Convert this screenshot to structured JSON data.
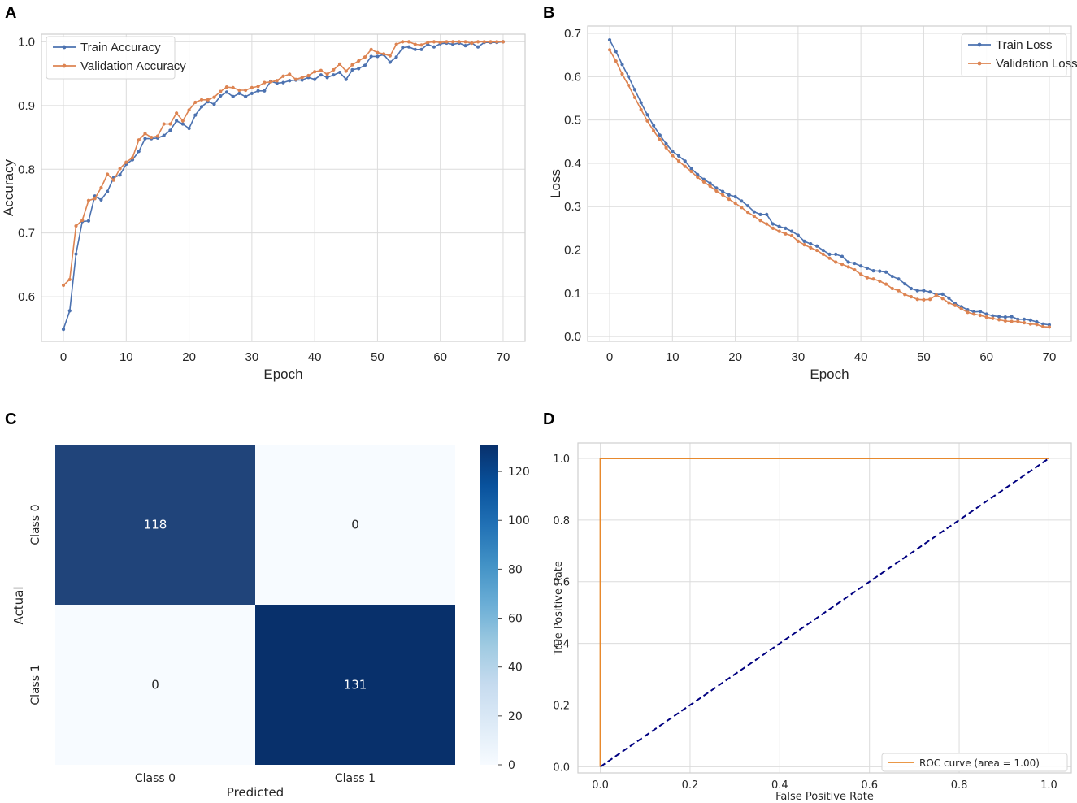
{
  "chart_data": [
    {
      "panel": "A",
      "type": "line",
      "xlabel": "Epoch",
      "ylabel": "Accuracy",
      "xlim": [
        -3.5,
        73.5
      ],
      "ylim": [
        0.53,
        1.012
      ],
      "xticks": [
        0,
        10,
        20,
        30,
        40,
        50,
        60,
        70
      ],
      "xtick_labels": [
        "0",
        "10",
        "20",
        "30",
        "40",
        "50",
        "60",
        "70"
      ],
      "yticks": [
        0.6,
        0.7,
        0.8,
        0.9,
        1.0
      ],
      "ytick_labels": [
        "0.6",
        "0.7",
        "0.8",
        "0.9",
        "1.0"
      ],
      "grid": true,
      "legend_position": "top-left",
      "series": [
        {
          "name": "Train Accuracy",
          "color": "#4c72b0",
          "values": [
            0.549,
            0.578,
            0.667,
            0.718,
            0.719,
            0.758,
            0.752,
            0.765,
            0.787,
            0.791,
            0.808,
            0.815,
            0.828,
            0.848,
            0.848,
            0.849,
            0.853,
            0.861,
            0.876,
            0.871,
            0.864,
            0.885,
            0.898,
            0.906,
            0.902,
            0.915,
            0.921,
            0.914,
            0.919,
            0.914,
            0.919,
            0.923,
            0.923,
            0.938,
            0.935,
            0.936,
            0.939,
            0.94,
            0.94,
            0.944,
            0.941,
            0.948,
            0.944,
            0.948,
            0.952,
            0.941,
            0.956,
            0.958,
            0.963,
            0.977,
            0.977,
            0.98,
            0.968,
            0.976,
            0.991,
            0.992,
            0.988,
            0.988,
            0.996,
            0.992,
            0.997,
            0.998,
            0.996,
            0.998,
            0.994,
            0.998,
            0.992,
            0.999,
            0.999,
            0.999,
            1.0
          ]
        },
        {
          "name": "Validation Accuracy",
          "color": "#dd8452",
          "values": [
            0.618,
            0.627,
            0.711,
            0.72,
            0.751,
            0.754,
            0.771,
            0.792,
            0.783,
            0.801,
            0.811,
            0.818,
            0.846,
            0.856,
            0.85,
            0.852,
            0.871,
            0.871,
            0.888,
            0.876,
            0.893,
            0.905,
            0.909,
            0.909,
            0.913,
            0.922,
            0.929,
            0.928,
            0.924,
            0.924,
            0.928,
            0.93,
            0.936,
            0.937,
            0.939,
            0.946,
            0.949,
            0.941,
            0.944,
            0.947,
            0.953,
            0.955,
            0.949,
            0.956,
            0.965,
            0.954,
            0.964,
            0.97,
            0.976,
            0.988,
            0.983,
            0.981,
            0.978,
            0.996,
            1.0,
            1.0,
            0.996,
            0.995,
            0.999,
            1.0,
            0.999,
            1.0,
            1.0,
            1.0,
            1.0,
            0.998,
            1.0,
            1.0,
            1.0,
            1.0,
            1.0
          ]
        }
      ]
    },
    {
      "panel": "B",
      "type": "line",
      "xlabel": "Epoch",
      "ylabel": "Loss",
      "xlim": [
        -3.5,
        73.5
      ],
      "ylim": [
        -0.011,
        0.717
      ],
      "xticks": [
        0,
        10,
        20,
        30,
        40,
        50,
        60,
        70
      ],
      "xtick_labels": [
        "0",
        "10",
        "20",
        "30",
        "40",
        "50",
        "60",
        "70"
      ],
      "yticks": [
        0.0,
        0.1,
        0.2,
        0.3,
        0.4,
        0.5,
        0.6,
        0.7
      ],
      "ytick_labels": [
        "0.0",
        "0.1",
        "0.2",
        "0.3",
        "0.4",
        "0.5",
        "0.6",
        "0.7"
      ],
      "grid": true,
      "legend_position": "top-right",
      "series": [
        {
          "name": "Train Loss",
          "color": "#4c72b0",
          "values": [
            0.685,
            0.658,
            0.628,
            0.6,
            0.57,
            0.54,
            0.512,
            0.487,
            0.465,
            0.445,
            0.428,
            0.417,
            0.405,
            0.388,
            0.374,
            0.363,
            0.354,
            0.343,
            0.335,
            0.327,
            0.323,
            0.313,
            0.302,
            0.288,
            0.282,
            0.282,
            0.26,
            0.254,
            0.25,
            0.243,
            0.234,
            0.22,
            0.214,
            0.209,
            0.199,
            0.19,
            0.19,
            0.185,
            0.172,
            0.169,
            0.163,
            0.158,
            0.152,
            0.151,
            0.149,
            0.139,
            0.133,
            0.122,
            0.111,
            0.106,
            0.106,
            0.103,
            0.097,
            0.098,
            0.089,
            0.076,
            0.069,
            0.062,
            0.057,
            0.058,
            0.052,
            0.048,
            0.046,
            0.045,
            0.046,
            0.04,
            0.04,
            0.038,
            0.034,
            0.029,
            0.027
          ]
        },
        {
          "name": "Validation Loss",
          "color": "#dd8452",
          "values": [
            0.662,
            0.636,
            0.606,
            0.58,
            0.552,
            0.524,
            0.498,
            0.475,
            0.455,
            0.436,
            0.418,
            0.405,
            0.393,
            0.381,
            0.368,
            0.357,
            0.347,
            0.336,
            0.327,
            0.317,
            0.308,
            0.298,
            0.287,
            0.278,
            0.268,
            0.26,
            0.25,
            0.243,
            0.237,
            0.233,
            0.22,
            0.212,
            0.205,
            0.199,
            0.19,
            0.181,
            0.172,
            0.167,
            0.161,
            0.154,
            0.144,
            0.136,
            0.133,
            0.128,
            0.121,
            0.111,
            0.106,
            0.097,
            0.092,
            0.086,
            0.085,
            0.086,
            0.096,
            0.088,
            0.078,
            0.072,
            0.064,
            0.056,
            0.052,
            0.049,
            0.045,
            0.042,
            0.039,
            0.036,
            0.035,
            0.035,
            0.032,
            0.029,
            0.028,
            0.023,
            0.022
          ]
        }
      ]
    },
    {
      "panel": "C",
      "type": "heatmap",
      "xlabel": "Predicted",
      "ylabel": "Actual",
      "x_categories": [
        "Class 0",
        "Class 1"
      ],
      "y_categories": [
        "Class 0",
        "Class 1"
      ],
      "matrix": [
        [
          118,
          0
        ],
        [
          0,
          131
        ]
      ],
      "colorbar": {
        "min": 0,
        "max": 131,
        "ticks": [
          0,
          20,
          40,
          60,
          80,
          100,
          120
        ],
        "tick_labels": [
          "0",
          "20",
          "40",
          "60",
          "80",
          "100",
          "120"
        ],
        "colormap": "Blues"
      }
    },
    {
      "panel": "D",
      "type": "line",
      "xlabel": "False Positive Rate",
      "ylabel": "True Positive Rate",
      "xlim": [
        -0.05,
        1.05
      ],
      "ylim": [
        -0.02,
        1.05
      ],
      "xticks": [
        0.0,
        0.2,
        0.4,
        0.6,
        0.8,
        1.0
      ],
      "xtick_labels": [
        "0.0",
        "0.2",
        "0.4",
        "0.6",
        "0.8",
        "1.0"
      ],
      "yticks": [
        0.0,
        0.2,
        0.4,
        0.6,
        0.8,
        1.0
      ],
      "ytick_labels": [
        "0.0",
        "0.2",
        "0.4",
        "0.6",
        "0.8",
        "1.0"
      ],
      "grid": true,
      "legend_position": "bottom-right",
      "series": [
        {
          "name": "ROC curve (area = 1.00)",
          "color": "#e7892d",
          "x": [
            0.0,
            0.0,
            1.0
          ],
          "y": [
            0.0,
            1.0,
            1.0
          ]
        },
        {
          "name": "",
          "color": "#000080",
          "dashed": true,
          "x": [
            0.0,
            1.0
          ],
          "y": [
            0.0,
            1.0
          ]
        }
      ]
    }
  ],
  "panel_labels": [
    "A",
    "B",
    "C",
    "D"
  ]
}
